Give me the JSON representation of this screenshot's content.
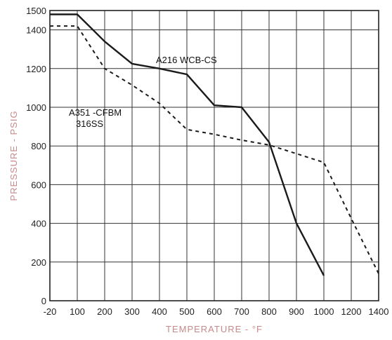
{
  "chart_data": {
    "type": "line",
    "title": "",
    "xlabel": "TEMPERATURE - °F",
    "ylabel": "PRESSURE - PSIG",
    "x_ticks": [
      -20,
      100,
      200,
      300,
      400,
      500,
      600,
      700,
      800,
      900,
      1000,
      1200,
      1400
    ],
    "x_tick_labels": [
      "-20",
      "100",
      "200",
      "300",
      "400",
      "500",
      "600",
      "700",
      "800",
      "900",
      "1000",
      "1200",
      "1400"
    ],
    "y_ticks": [
      0,
      200,
      400,
      600,
      800,
      1000,
      1200,
      1400,
      1500
    ],
    "y_tick_labels": [
      "0",
      "200",
      "400",
      "600",
      "800",
      "1000",
      "1200",
      "1400",
      "1500"
    ],
    "ylim": [
      0,
      1500
    ],
    "grid": true,
    "series": [
      {
        "name": "A216 WCB-CS",
        "style": "solid",
        "color": "#1a1a1a",
        "x": [
          -20,
          100,
          200,
          300,
          400,
          500,
          600,
          700,
          800,
          900,
          1000
        ],
        "y": [
          1480,
          1480,
          1340,
          1225,
          1200,
          1170,
          1010,
          1000,
          820,
          400,
          130
        ]
      },
      {
        "name": "A351 -CF8M 316SS",
        "style": "dashed",
        "color": "#1a1a1a",
        "x": [
          -20,
          100,
          200,
          300,
          400,
          500,
          600,
          700,
          800,
          900,
          1000,
          1200,
          1400
        ],
        "y": [
          1420,
          1420,
          1200,
          1115,
          1020,
          885,
          860,
          830,
          805,
          760,
          715,
          425,
          140
        ]
      }
    ],
    "annotations": [
      {
        "text": "A216 WCB-CS",
        "series": 0
      },
      {
        "text": "A351 -CFBM",
        "series": 1
      },
      {
        "text": "316SS",
        "series": 1
      }
    ]
  }
}
